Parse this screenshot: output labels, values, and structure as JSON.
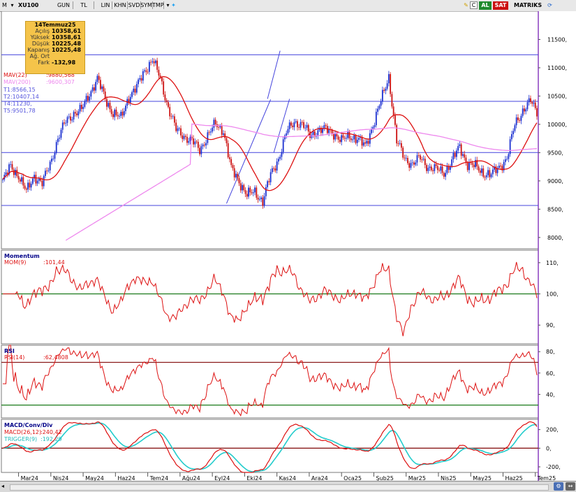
{
  "toolbar": {
    "symbol": "XU100",
    "buttons": [
      "GUN",
      "TL",
      "LIN",
      "KHN",
      "SVD",
      "SYM",
      "TMP"
    ],
    "al": "AL",
    "sat": "SAT",
    "brand": "MATRIKS",
    "icon_names": [
      "menu-icon",
      "dropdown-icon",
      "twitter-icon",
      "cursor-icon",
      "c-icon",
      "refresh-icon"
    ]
  },
  "infobox": {
    "date": "14Temmuz25",
    "rows": [
      {
        "label": "Açılış",
        "value": "10358,61"
      },
      {
        "label": "Yüksek",
        "value": "10358,61"
      },
      {
        "label": "Düşük",
        "value": "10225,48"
      },
      {
        "label": "Kapanış",
        "value": "10225,48"
      },
      {
        "label": "Ağ. Ort",
        "value": ""
      },
      {
        "label": "Fark",
        "value": "-132,98"
      }
    ]
  },
  "overlays": {
    "mav22": "MAV(22)",
    "mav22_value": ":9880,568",
    "mav200": "MAV(200)",
    "mav200_value": ":9600,307",
    "t1": "T1:8566,15",
    "t2": "T2:10407,14",
    "t4": "T4:11230,",
    "t5": "T5:9501,78"
  },
  "momentum": {
    "title": "Momentum",
    "label": "MOM(9)",
    "value": ":101,44"
  },
  "rsi": {
    "title": "RSI",
    "label": "RSI(14)",
    "value": ":62,4808"
  },
  "macd": {
    "title": "MACD/Conv/Div",
    "label": "MACD(26,12)",
    "value": ":240,42",
    "trigger": "TRIGGER(9)",
    "trigger_value": ":192,29"
  },
  "chart_data": [
    {
      "type": "candlestick",
      "symbol": "XU100",
      "x_tick_labels": [
        "Mar24",
        "Nis24",
        "May24",
        "Haz24",
        "Tem24",
        "Ağu24",
        "Eyl24",
        "Eki24",
        "Kas24",
        "Ara24",
        "Oca25",
        "Şub25",
        "Mar25",
        "Nis25",
        "May25",
        "Haz25",
        "Tem25"
      ],
      "y_tick_labels": [
        "11500,",
        "11000,",
        "10500,",
        "10000,",
        "9500,",
        "9000,",
        "8500,",
        "8000,"
      ],
      "y_ticks": [
        11500,
        11000,
        10500,
        10000,
        9500,
        9000,
        8500,
        8000
      ],
      "ylim": [
        7800,
        12000
      ],
      "close_series": {
        "x": [
          0,
          5,
          10,
          15,
          20,
          25,
          30,
          35,
          40,
          45,
          50,
          55,
          60,
          65,
          70,
          75,
          80,
          85,
          90,
          95,
          100,
          105,
          110,
          115,
          120,
          125,
          130,
          135,
          140,
          145,
          150,
          155,
          160,
          165,
          170,
          175,
          180,
          185,
          190,
          195,
          200,
          205,
          210,
          215,
          220,
          225,
          230,
          235,
          240,
          245,
          250,
          255,
          260,
          265,
          270,
          275,
          280,
          285,
          290,
          295,
          300,
          305,
          310,
          315,
          320,
          325,
          330,
          335,
          339
        ],
        "values": [
          9000,
          9250,
          9100,
          8800,
          9100,
          8950,
          9300,
          9750,
          10050,
          10200,
          10250,
          10550,
          10800,
          10450,
          10200,
          10100,
          10500,
          10650,
          10950,
          11150,
          10800,
          10300,
          9900,
          9800,
          9700,
          9550,
          9800,
          10000,
          9900,
          9200,
          9000,
          8750,
          8800,
          8650,
          9100,
          9400,
          9850,
          10050,
          10000,
          9800,
          9900,
          9900,
          9850,
          9700,
          9800,
          9750,
          9600,
          10000,
          10400,
          10850,
          9700,
          9400,
          9300,
          9400,
          9250,
          9200,
          9150,
          9350,
          9600,
          9300,
          9250,
          9150,
          9100,
          9250,
          9400,
          10000,
          10250,
          10400,
          10225.48
        ]
      },
      "horizontal_levels": [
        {
          "name": "T4",
          "value": 11230
        },
        {
          "name": "T2",
          "value": 10407.14
        },
        {
          "name": "T5",
          "value": 9501.78
        },
        {
          "name": "T1",
          "value": 8566.15
        }
      ],
      "series": [
        {
          "name": "MAV(22)",
          "color": "#dd1111",
          "last": 9880.568
        },
        {
          "name": "MAV(200)",
          "color": "#ee88ee",
          "last": 9600.307
        }
      ]
    },
    {
      "type": "line",
      "name": "Momentum",
      "y_tick_labels": [
        "110,",
        "100,",
        "90,"
      ],
      "ylim": [
        84,
        114
      ],
      "reference_line": 100,
      "series": [
        {
          "name": "MOM(9)",
          "color": "#dd1111",
          "last": 101.44
        }
      ]
    },
    {
      "type": "line",
      "name": "RSI",
      "y_tick_labels": [
        "80,",
        "60,",
        "40,"
      ],
      "ylim": [
        18,
        86
      ],
      "reference_lines": [
        70,
        30
      ],
      "series": [
        {
          "name": "RSI(14)",
          "color": "#dd1111",
          "last": 62.4808
        }
      ]
    },
    {
      "type": "line",
      "name": "MACD/Conv/Div",
      "y_tick_labels": [
        "200,",
        "0,",
        "-200,"
      ],
      "ylim": [
        -260,
        310
      ],
      "reference_line": 0,
      "series": [
        {
          "name": "MACD(26,12)",
          "color": "#dd1111",
          "last": 240.42
        },
        {
          "name": "TRIGGER(9)",
          "color": "#22cccc",
          "last": 192.29
        }
      ]
    }
  ]
}
